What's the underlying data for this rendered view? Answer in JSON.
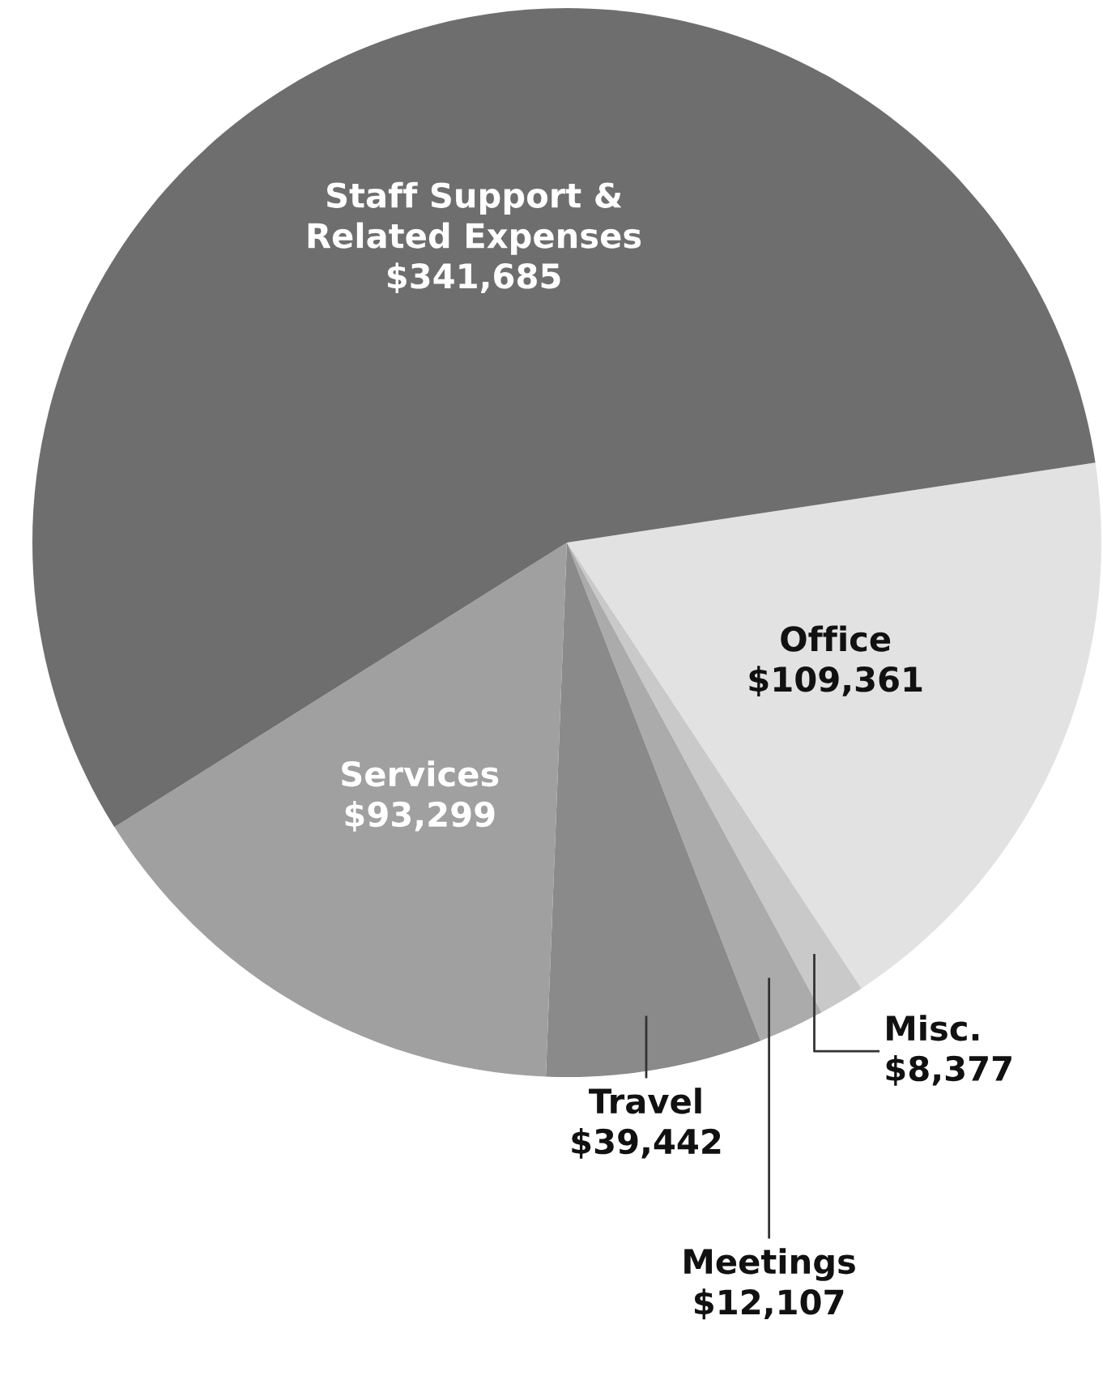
{
  "chart_data": {
    "type": "pie",
    "categories": [
      "Office",
      "Misc.",
      "Meetings",
      "Travel",
      "Services",
      "Staff Support &\nRelated Expenses"
    ],
    "values": [
      109361,
      8377,
      12107,
      39442,
      93299,
      341685
    ],
    "value_labels": [
      "$109,361",
      "$8,377",
      "$12,107",
      "$39,442",
      "$93,299",
      "$341,685"
    ],
    "colors": [
      "#e2e2e2",
      "#c9c9c9",
      "#ababab",
      "#8a8a8a",
      "#a0a0a0",
      "#6e6e6e"
    ],
    "legend": false
  }
}
